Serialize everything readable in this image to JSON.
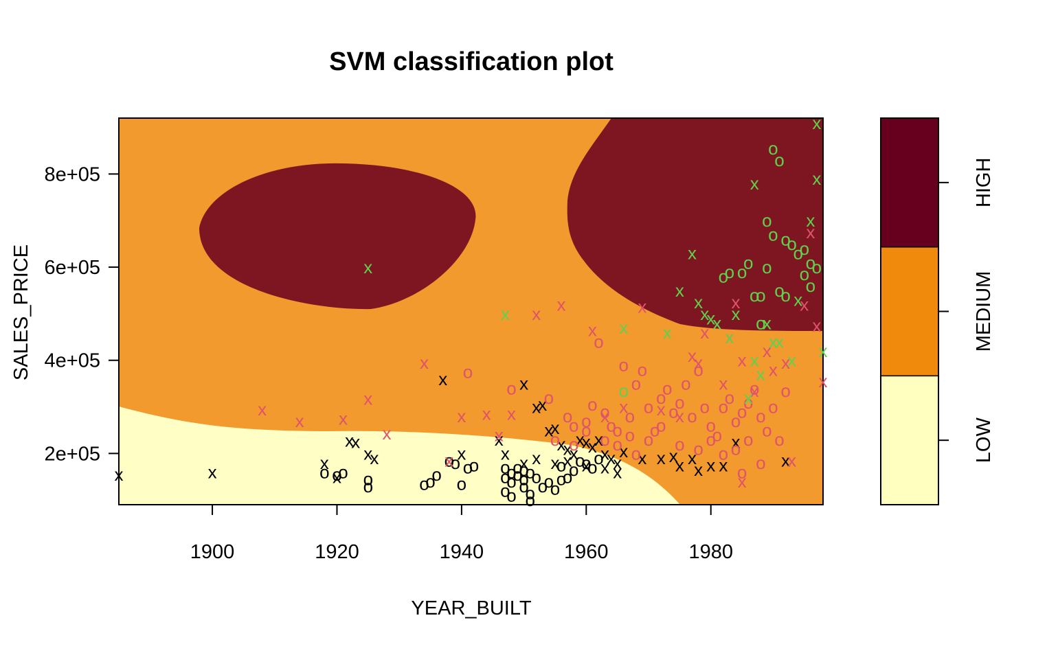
{
  "chart_data": {
    "type": "scatter",
    "title": "SVM classification plot",
    "xlabel": "YEAR_BUILT",
    "ylabel": "SALES_PRICE",
    "xlim": [
      1885,
      1998
    ],
    "ylim": [
      90000,
      920000
    ],
    "x_ticks": [
      1900,
      1920,
      1940,
      1960,
      1980
    ],
    "x_tick_labels": [
      "1900",
      "1920",
      "1940",
      "1960",
      "1980"
    ],
    "y_ticks": [
      200000,
      400000,
      600000,
      800000
    ],
    "y_tick_labels": [
      "2e+05",
      "4e+05",
      "6e+05",
      "8e+05"
    ],
    "legend": {
      "position": "right",
      "levels": [
        "LOW",
        "MEDIUM",
        "HIGH"
      ],
      "colors": [
        "#FFFFBF",
        "#EF8A0C",
        "#67001F"
      ]
    },
    "region_colors": {
      "LOW": "#FFFFC5",
      "MEDIUM": "#F29A2E",
      "HIGH": "#7D1621"
    },
    "class_colors": {
      "LOW": "#000000",
      "MEDIUM": "#DF536B",
      "HIGH": "#61D04F"
    },
    "markers": {
      "support_vector": "x",
      "data_point": "o"
    },
    "series": [
      {
        "class": "LOW",
        "points": [
          [
            1885,
            155000,
            "x"
          ],
          [
            1900,
            160000,
            "x"
          ],
          [
            1918,
            180000,
            "x"
          ],
          [
            1920,
            150000,
            "x"
          ],
          [
            1922,
            228000,
            "x"
          ],
          [
            1923,
            225000,
            "x"
          ],
          [
            1925,
            200000,
            "x"
          ],
          [
            1926,
            190000,
            "x"
          ],
          [
            1937,
            360000,
            "x"
          ],
          [
            1940,
            200000,
            "x"
          ],
          [
            1946,
            230000,
            "x"
          ],
          [
            1947,
            200000,
            "x"
          ],
          [
            1950,
            350000,
            "x"
          ],
          [
            1952,
            300000,
            "x"
          ],
          [
            1953,
            305000,
            "x"
          ],
          [
            1954,
            250000,
            "x"
          ],
          [
            1955,
            255000,
            "x"
          ],
          [
            1956,
            220000,
            "x"
          ],
          [
            1957,
            210000,
            "x"
          ],
          [
            1958,
            200000,
            "x"
          ],
          [
            1959,
            230000,
            "x"
          ],
          [
            1960,
            225000,
            "x"
          ],
          [
            1961,
            215000,
            "x"
          ],
          [
            1962,
            230000,
            "x"
          ],
          [
            1963,
            200000,
            "x"
          ],
          [
            1964,
            190000,
            "x"
          ],
          [
            1965,
            180000,
            "x"
          ],
          [
            1966,
            205000,
            "x"
          ],
          [
            1969,
            190000,
            "x"
          ],
          [
            1972,
            190000,
            "x"
          ],
          [
            1974,
            195000,
            "x"
          ],
          [
            1975,
            175000,
            "x"
          ],
          [
            1977,
            190000,
            "x"
          ],
          [
            1978,
            165000,
            "x"
          ],
          [
            1980,
            175000,
            "x"
          ],
          [
            1982,
            175000,
            "x"
          ],
          [
            1984,
            225000,
            "x"
          ],
          [
            1992,
            185000,
            "x"
          ],
          [
            1955,
            180000,
            "x"
          ],
          [
            1957,
            185000,
            "x"
          ],
          [
            1960,
            175000,
            "x"
          ],
          [
            1963,
            170000,
            "x"
          ],
          [
            1965,
            160000,
            "x"
          ],
          [
            1952,
            190000,
            "x"
          ],
          [
            1950,
            180000,
            "x"
          ],
          [
            1918,
            160000,
            "o"
          ],
          [
            1920,
            155000,
            "o"
          ],
          [
            1921,
            160000,
            "o"
          ],
          [
            1925,
            145000,
            "o"
          ],
          [
            1925,
            130000,
            "o"
          ],
          [
            1934,
            135000,
            "o"
          ],
          [
            1935,
            140000,
            "o"
          ],
          [
            1936,
            155000,
            "o"
          ],
          [
            1938,
            185000,
            "o"
          ],
          [
            1939,
            180000,
            "o"
          ],
          [
            1940,
            135000,
            "o"
          ],
          [
            1941,
            170000,
            "o"
          ],
          [
            1942,
            175000,
            "o"
          ],
          [
            1947,
            170000,
            "o"
          ],
          [
            1947,
            150000,
            "o"
          ],
          [
            1947,
            120000,
            "o"
          ],
          [
            1948,
            110000,
            "o"
          ],
          [
            1948,
            140000,
            "o"
          ],
          [
            1949,
            155000,
            "o"
          ],
          [
            1950,
            130000,
            "o"
          ],
          [
            1950,
            145000,
            "o"
          ],
          [
            1951,
            100000,
            "o"
          ],
          [
            1951,
            115000,
            "o"
          ],
          [
            1951,
            160000,
            "o"
          ],
          [
            1952,
            150000,
            "o"
          ],
          [
            1953,
            130000,
            "o"
          ],
          [
            1954,
            140000,
            "o"
          ],
          [
            1955,
            125000,
            "o"
          ],
          [
            1956,
            145000,
            "o"
          ],
          [
            1956,
            175000,
            "o"
          ],
          [
            1957,
            150000,
            "o"
          ],
          [
            1958,
            165000,
            "o"
          ],
          [
            1959,
            185000,
            "o"
          ],
          [
            1960,
            180000,
            "o"
          ],
          [
            1961,
            170000,
            "o"
          ],
          [
            1962,
            190000,
            "o"
          ],
          [
            1949,
            170000,
            "o"
          ],
          [
            1950,
            165000,
            "o"
          ],
          [
            1948,
            160000,
            "o"
          ]
        ]
      },
      {
        "class": "MEDIUM",
        "points": [
          [
            1908,
            295000,
            "x"
          ],
          [
            1914,
            270000,
            "x"
          ],
          [
            1921,
            275000,
            "x"
          ],
          [
            1925,
            318000,
            "x"
          ],
          [
            1928,
            243000,
            "x"
          ],
          [
            1934,
            395000,
            "x"
          ],
          [
            1938,
            185000,
            "x"
          ],
          [
            1940,
            280000,
            "x"
          ],
          [
            1944,
            285000,
            "x"
          ],
          [
            1946,
            240000,
            "x"
          ],
          [
            1948,
            285000,
            "x"
          ],
          [
            1952,
            500000,
            "x"
          ],
          [
            1956,
            520000,
            "x"
          ],
          [
            1961,
            465000,
            "x"
          ],
          [
            1963,
            280000,
            "x"
          ],
          [
            1966,
            300000,
            "x"
          ],
          [
            1969,
            515000,
            "x"
          ],
          [
            1972,
            295000,
            "x"
          ],
          [
            1975,
            280000,
            "x"
          ],
          [
            1977,
            410000,
            "x"
          ],
          [
            1979,
            460000,
            "x"
          ],
          [
            1981,
            480000,
            "x"
          ],
          [
            1983,
            450000,
            "x"
          ],
          [
            1984,
            525000,
            "x"
          ],
          [
            1985,
            400000,
            "x"
          ],
          [
            1987,
            335000,
            "x"
          ],
          [
            1989,
            420000,
            "x"
          ],
          [
            1990,
            380000,
            "x"
          ],
          [
            1992,
            395000,
            "x"
          ],
          [
            1993,
            185000,
            "x"
          ],
          [
            1995,
            520000,
            "x"
          ],
          [
            1996,
            675000,
            "x"
          ],
          [
            1997,
            475000,
            "x"
          ],
          [
            1998,
            355000,
            "x"
          ],
          [
            1978,
            395000,
            "x"
          ],
          [
            1982,
            350000,
            "x"
          ],
          [
            1985,
            140000,
            "x"
          ],
          [
            1941,
            375000,
            "o"
          ],
          [
            1948,
            340000,
            "o"
          ],
          [
            1954,
            320000,
            "o"
          ],
          [
            1957,
            280000,
            "o"
          ],
          [
            1958,
            260000,
            "o"
          ],
          [
            1960,
            270000,
            "o"
          ],
          [
            1961,
            305000,
            "o"
          ],
          [
            1962,
            440000,
            "o"
          ],
          [
            1963,
            290000,
            "o"
          ],
          [
            1964,
            260000,
            "o"
          ],
          [
            1965,
            250000,
            "o"
          ],
          [
            1966,
            390000,
            "o"
          ],
          [
            1967,
            280000,
            "o"
          ],
          [
            1968,
            350000,
            "o"
          ],
          [
            1969,
            380000,
            "o"
          ],
          [
            1970,
            300000,
            "o"
          ],
          [
            1971,
            250000,
            "o"
          ],
          [
            1972,
            320000,
            "o"
          ],
          [
            1973,
            340000,
            "o"
          ],
          [
            1974,
            290000,
            "o"
          ],
          [
            1975,
            310000,
            "o"
          ],
          [
            1976,
            350000,
            "o"
          ],
          [
            1977,
            280000,
            "o"
          ],
          [
            1978,
            380000,
            "o"
          ],
          [
            1979,
            300000,
            "o"
          ],
          [
            1980,
            260000,
            "o"
          ],
          [
            1981,
            240000,
            "o"
          ],
          [
            1982,
            300000,
            "o"
          ],
          [
            1983,
            320000,
            "o"
          ],
          [
            1984,
            270000,
            "o"
          ],
          [
            1985,
            290000,
            "o"
          ],
          [
            1986,
            310000,
            "o"
          ],
          [
            1987,
            340000,
            "o"
          ],
          [
            1988,
            280000,
            "o"
          ],
          [
            1989,
            250000,
            "o"
          ],
          [
            1990,
            300000,
            "o"
          ],
          [
            1991,
            230000,
            "o"
          ],
          [
            1992,
            335000,
            "o"
          ],
          [
            1985,
            160000,
            "o"
          ],
          [
            1988,
            180000,
            "o"
          ],
          [
            1980,
            230000,
            "o"
          ],
          [
            1975,
            220000,
            "o"
          ],
          [
            1970,
            230000,
            "o"
          ],
          [
            1968,
            200000,
            "o"
          ],
          [
            1965,
            220000,
            "o"
          ],
          [
            1967,
            240000,
            "o"
          ],
          [
            1972,
            260000,
            "o"
          ],
          [
            1978,
            210000,
            "o"
          ],
          [
            1982,
            200000,
            "o"
          ],
          [
            1984,
            210000,
            "o"
          ],
          [
            1986,
            230000,
            "o"
          ],
          [
            1955,
            230000,
            "o"
          ],
          [
            1958,
            220000,
            "o"
          ],
          [
            1960,
            250000,
            "o"
          ],
          [
            1963,
            230000,
            "o"
          ]
        ]
      },
      {
        "class": "HIGH",
        "points": [
          [
            1925,
            600000,
            "x"
          ],
          [
            1947,
            500000,
            "x"
          ],
          [
            1966,
            470000,
            "x"
          ],
          [
            1973,
            460000,
            "x"
          ],
          [
            1975,
            550000,
            "x"
          ],
          [
            1977,
            630000,
            "x"
          ],
          [
            1978,
            525000,
            "x"
          ],
          [
            1979,
            500000,
            "x"
          ],
          [
            1980,
            490000,
            "x"
          ],
          [
            1981,
            480000,
            "x"
          ],
          [
            1983,
            450000,
            "x"
          ],
          [
            1984,
            500000,
            "x"
          ],
          [
            1986,
            320000,
            "x"
          ],
          [
            1987,
            780000,
            "x"
          ],
          [
            1988,
            370000,
            "x"
          ],
          [
            1989,
            480000,
            "x"
          ],
          [
            1990,
            440000,
            "x"
          ],
          [
            1991,
            440000,
            "x"
          ],
          [
            1993,
            400000,
            "x"
          ],
          [
            1994,
            530000,
            "x"
          ],
          [
            1996,
            700000,
            "x"
          ],
          [
            1997,
            790000,
            "x"
          ],
          [
            1997,
            910000,
            "x"
          ],
          [
            1998,
            420000,
            "x"
          ],
          [
            1987,
            400000,
            "x"
          ],
          [
            1966,
            335000,
            "o"
          ],
          [
            1982,
            580000,
            "o"
          ],
          [
            1983,
            590000,
            "o"
          ],
          [
            1985,
            590000,
            "o"
          ],
          [
            1986,
            610000,
            "o"
          ],
          [
            1987,
            540000,
            "o"
          ],
          [
            1988,
            540000,
            "o"
          ],
          [
            1989,
            600000,
            "o"
          ],
          [
            1989,
            700000,
            "o"
          ],
          [
            1990,
            855000,
            "o"
          ],
          [
            1991,
            830000,
            "o"
          ],
          [
            1991,
            550000,
            "o"
          ],
          [
            1992,
            540000,
            "o"
          ],
          [
            1993,
            650000,
            "o"
          ],
          [
            1994,
            630000,
            "o"
          ],
          [
            1995,
            640000,
            "o"
          ],
          [
            1995,
            585000,
            "o"
          ],
          [
            1996,
            610000,
            "o"
          ],
          [
            1996,
            560000,
            "o"
          ],
          [
            1997,
            600000,
            "o"
          ],
          [
            1990,
            670000,
            "o"
          ],
          [
            1992,
            660000,
            "o"
          ],
          [
            1988,
            480000,
            "o"
          ]
        ]
      }
    ]
  }
}
